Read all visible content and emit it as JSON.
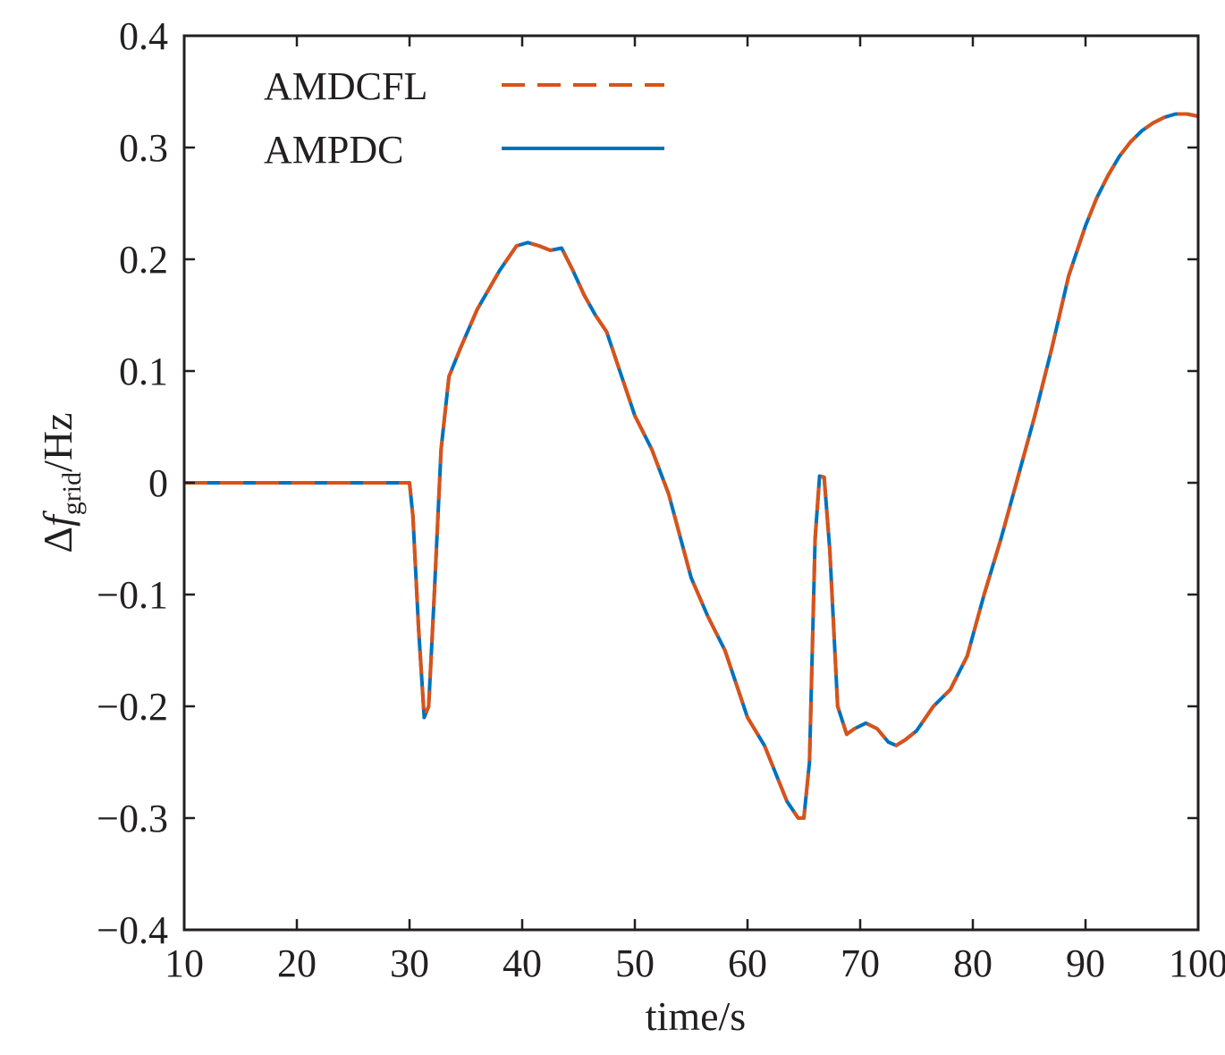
{
  "chart_data": {
    "type": "line",
    "title": "",
    "xlabel": "time/s",
    "ylabel": {
      "prefix": "Δ",
      "symbol": "f",
      "subscript": "grid",
      "suffix": "/Hz"
    },
    "xlim": [
      10,
      100
    ],
    "ylim": [
      -0.4,
      0.4
    ],
    "x_ticks": [
      10,
      20,
      30,
      40,
      50,
      60,
      70,
      80,
      90,
      100
    ],
    "x_tick_labels": [
      "10",
      "20",
      "30",
      "40",
      "50",
      "60",
      "70",
      "80",
      "90",
      "100"
    ],
    "y_ticks": [
      0.4,
      0.3,
      0.2,
      0.1,
      0,
      -0.1,
      -0.2,
      -0.3,
      -0.4
    ],
    "y_tick_labels": [
      "0.4",
      "0.3",
      "0.2",
      "0.1",
      "0",
      "−0.1",
      "−0.2",
      "−0.3",
      "−0.4"
    ],
    "grid": false,
    "legend_position": "top-left",
    "x": [
      10,
      20,
      30,
      30.3,
      30.8,
      31.3,
      31.7,
      32.2,
      32.8,
      33.5,
      34.5,
      36,
      38,
      39.5,
      40.5,
      41.5,
      42.5,
      43.5,
      44.5,
      45.5,
      46.5,
      47.5,
      48.5,
      50,
      51.5,
      53,
      55,
      56.5,
      58,
      59,
      60,
      61.5,
      62.5,
      63.5,
      64.5,
      65,
      65.5,
      66,
      66.4,
      66.8,
      67.3,
      68,
      68.8,
      69.5,
      70.5,
      71.5,
      72.5,
      73.2,
      74,
      75,
      76.5,
      78,
      79.5,
      81,
      82.5,
      84,
      85.5,
      87,
      88.5,
      90,
      91,
      92,
      93,
      94,
      95,
      96,
      97,
      98,
      99,
      100
    ],
    "series": [
      {
        "name": "AMDCFL",
        "color": "#d95319",
        "style": "dashed",
        "y": [
          0,
          0,
          0,
          -0.03,
          -0.13,
          -0.21,
          -0.2,
          -0.1,
          0.03,
          0.095,
          0.12,
          0.155,
          0.19,
          0.212,
          0.215,
          0.212,
          0.208,
          0.21,
          0.19,
          0.168,
          0.15,
          0.135,
          0.105,
          0.06,
          0.03,
          -0.01,
          -0.085,
          -0.12,
          -0.15,
          -0.18,
          -0.21,
          -0.235,
          -0.26,
          -0.285,
          -0.3,
          -0.3,
          -0.25,
          -0.05,
          0.006,
          0.005,
          -0.06,
          -0.2,
          -0.225,
          -0.22,
          -0.215,
          -0.22,
          -0.232,
          -0.235,
          -0.23,
          -0.222,
          -0.2,
          -0.185,
          -0.155,
          -0.1,
          -0.05,
          0.005,
          0.06,
          0.12,
          0.185,
          0.23,
          0.255,
          0.275,
          0.292,
          0.305,
          0.315,
          0.322,
          0.327,
          0.33,
          0.33,
          0.328
        ]
      },
      {
        "name": "AMPDC",
        "color": "#0072bd",
        "style": "solid",
        "y": [
          0,
          0,
          0,
          -0.03,
          -0.13,
          -0.21,
          -0.2,
          -0.1,
          0.03,
          0.095,
          0.12,
          0.155,
          0.19,
          0.212,
          0.215,
          0.212,
          0.208,
          0.21,
          0.19,
          0.168,
          0.15,
          0.135,
          0.105,
          0.06,
          0.03,
          -0.01,
          -0.085,
          -0.12,
          -0.15,
          -0.18,
          -0.21,
          -0.235,
          -0.26,
          -0.285,
          -0.3,
          -0.3,
          -0.25,
          -0.05,
          0.006,
          0.005,
          -0.06,
          -0.2,
          -0.225,
          -0.22,
          -0.215,
          -0.22,
          -0.232,
          -0.235,
          -0.23,
          -0.222,
          -0.2,
          -0.185,
          -0.155,
          -0.1,
          -0.05,
          0.005,
          0.06,
          0.12,
          0.185,
          0.23,
          0.255,
          0.275,
          0.292,
          0.305,
          0.315,
          0.322,
          0.327,
          0.33,
          0.33,
          0.328
        ]
      }
    ]
  }
}
